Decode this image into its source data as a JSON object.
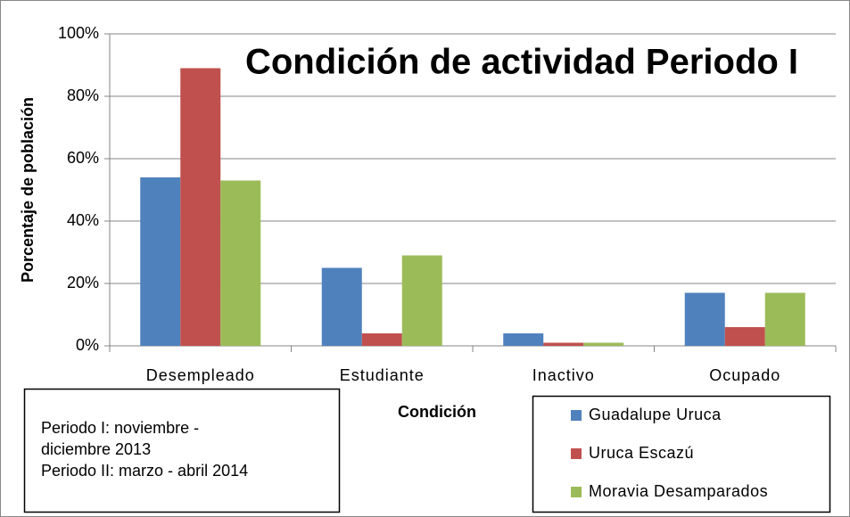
{
  "chart_data": {
    "type": "bar",
    "title": "Condición de actividad Periodo I",
    "x_label": "Condición",
    "y_label": "Porcentaje de población",
    "categories": [
      "Desempleado",
      "Estudiante",
      "Inactivo",
      "Ocupado"
    ],
    "series": [
      {
        "name": "Guadalupe Uruca",
        "color": "#4f81bd",
        "values": [
          54,
          25,
          4,
          17
        ]
      },
      {
        "name": "Uruca Escazú",
        "color": "#c0504d",
        "values": [
          89,
          4,
          1,
          6
        ]
      },
      {
        "name": "Moravia Desamparados",
        "color": "#9bbb59",
        "values": [
          53,
          29,
          1,
          17
        ]
      }
    ],
    "ylim": [
      0,
      100
    ],
    "yticks": [
      {
        "value": 0,
        "label": "0%"
      },
      {
        "value": 20,
        "label": "20%"
      },
      {
        "value": 40,
        "label": "40%"
      },
      {
        "value": 60,
        "label": "60%"
      },
      {
        "value": 80,
        "label": "80%"
      },
      {
        "value": 100,
        "label": "100%"
      }
    ],
    "grid": true,
    "annotation": [
      "Periodo I: noviembre -",
      "diciembre 2013",
      "Periodo II: marzo - abril 2014"
    ]
  }
}
